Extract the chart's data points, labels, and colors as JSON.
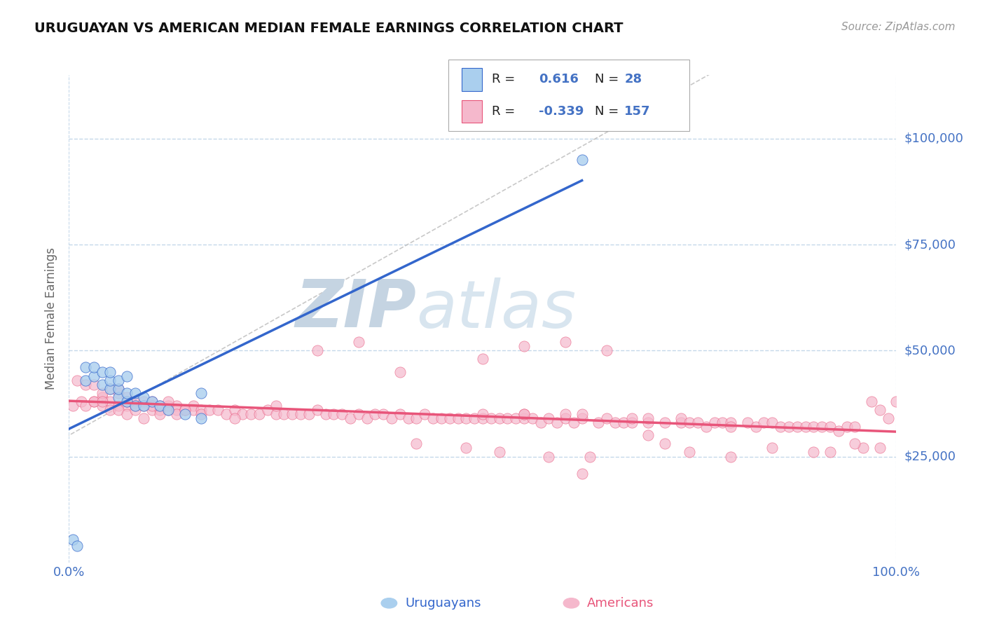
{
  "title": "URUGUAYAN VS AMERICAN MEDIAN FEMALE EARNINGS CORRELATION CHART",
  "source_text": "Source: ZipAtlas.com",
  "ylabel": "Median Female Earnings",
  "xmin": 0.0,
  "xmax": 1.0,
  "ymin": 0,
  "ymax": 115000,
  "yticks": [
    25000,
    50000,
    75000,
    100000
  ],
  "ytick_labels": [
    "$25,000",
    "$50,000",
    "$75,000",
    "$100,000"
  ],
  "xtick_labels": [
    "0.0%",
    "100.0%"
  ],
  "uruguayan_color": "#aacfee",
  "american_color": "#f5b8cc",
  "uruguayan_line_color": "#3366cc",
  "american_line_color": "#e8557a",
  "ref_line_color": "#bbbbbb",
  "title_color": "#111111",
  "axis_label_color": "#4472c4",
  "watermark_zip_color": "#c0cfe0",
  "watermark_atlas_color": "#d0d8e8",
  "background_color": "#ffffff",
  "grid_color": "#c5d8ea",
  "legend_box_color_1": "#aacfee",
  "legend_box_color_2": "#f5b8cc",
  "uruguayan_x": [
    0.005,
    0.01,
    0.02,
    0.02,
    0.03,
    0.03,
    0.04,
    0.04,
    0.05,
    0.05,
    0.05,
    0.06,
    0.06,
    0.06,
    0.07,
    0.07,
    0.07,
    0.08,
    0.08,
    0.09,
    0.09,
    0.1,
    0.11,
    0.12,
    0.14,
    0.16,
    0.16,
    0.62
  ],
  "uruguayan_y": [
    5500,
    4000,
    43000,
    46000,
    44000,
    46000,
    42000,
    45000,
    41000,
    43000,
    45000,
    39000,
    41000,
    43000,
    38000,
    40000,
    44000,
    37000,
    40000,
    37000,
    39000,
    38000,
    37000,
    36000,
    35000,
    34000,
    40000,
    95000
  ],
  "american_x": [
    0.005,
    0.01,
    0.015,
    0.02,
    0.02,
    0.03,
    0.03,
    0.04,
    0.04,
    0.05,
    0.05,
    0.06,
    0.06,
    0.07,
    0.07,
    0.08,
    0.08,
    0.09,
    0.09,
    0.1,
    0.1,
    0.11,
    0.11,
    0.12,
    0.12,
    0.13,
    0.13,
    0.14,
    0.14,
    0.15,
    0.15,
    0.16,
    0.16,
    0.17,
    0.18,
    0.19,
    0.2,
    0.21,
    0.22,
    0.23,
    0.24,
    0.25,
    0.26,
    0.27,
    0.28,
    0.29,
    0.3,
    0.31,
    0.32,
    0.33,
    0.34,
    0.35,
    0.36,
    0.37,
    0.38,
    0.39,
    0.4,
    0.41,
    0.42,
    0.43,
    0.44,
    0.45,
    0.46,
    0.47,
    0.48,
    0.49,
    0.5,
    0.5,
    0.51,
    0.52,
    0.53,
    0.54,
    0.55,
    0.55,
    0.56,
    0.57,
    0.58,
    0.59,
    0.6,
    0.6,
    0.61,
    0.62,
    0.62,
    0.64,
    0.65,
    0.66,
    0.67,
    0.68,
    0.68,
    0.7,
    0.7,
    0.72,
    0.74,
    0.74,
    0.75,
    0.76,
    0.77,
    0.78,
    0.79,
    0.8,
    0.8,
    0.82,
    0.83,
    0.84,
    0.85,
    0.86,
    0.87,
    0.88,
    0.89,
    0.9,
    0.91,
    0.92,
    0.93,
    0.94,
    0.95,
    0.96,
    0.97,
    0.98,
    0.99,
    1.0,
    0.03,
    0.04,
    0.04,
    0.05,
    0.06,
    0.06,
    0.07,
    0.07,
    0.08,
    0.09,
    0.1,
    0.11,
    0.12,
    0.13,
    0.14,
    0.2,
    0.25,
    0.3,
    0.35,
    0.4,
    0.5,
    0.55,
    0.6,
    0.65,
    0.42,
    0.48,
    0.52,
    0.58,
    0.63,
    0.72,
    0.75,
    0.8,
    0.85,
    0.9,
    0.92,
    0.95,
    0.98,
    0.62,
    0.7,
    0.55
  ],
  "american_y": [
    37000,
    43000,
    38000,
    42000,
    37000,
    42000,
    38000,
    39000,
    37000,
    41000,
    38000,
    40000,
    37000,
    39000,
    37000,
    38000,
    37000,
    38000,
    37000,
    38000,
    36000,
    37000,
    36000,
    37000,
    36000,
    37000,
    36000,
    36000,
    36000,
    37000,
    36000,
    36000,
    35000,
    36000,
    36000,
    35000,
    36000,
    35000,
    35000,
    35000,
    36000,
    35000,
    35000,
    35000,
    35000,
    35000,
    36000,
    35000,
    35000,
    35000,
    34000,
    35000,
    34000,
    35000,
    35000,
    34000,
    35000,
    34000,
    34000,
    35000,
    34000,
    34000,
    34000,
    34000,
    34000,
    34000,
    34000,
    35000,
    34000,
    34000,
    34000,
    34000,
    34000,
    35000,
    34000,
    33000,
    34000,
    33000,
    34000,
    35000,
    33000,
    34000,
    35000,
    33000,
    34000,
    33000,
    33000,
    33000,
    34000,
    33000,
    34000,
    33000,
    33000,
    34000,
    33000,
    33000,
    32000,
    33000,
    33000,
    33000,
    32000,
    33000,
    32000,
    33000,
    33000,
    32000,
    32000,
    32000,
    32000,
    32000,
    32000,
    32000,
    31000,
    32000,
    32000,
    27000,
    38000,
    36000,
    34000,
    38000,
    38000,
    40000,
    38000,
    36000,
    36000,
    41000,
    38000,
    35000,
    36000,
    34000,
    37000,
    35000,
    38000,
    35000,
    36000,
    34000,
    37000,
    50000,
    52000,
    45000,
    48000,
    51000,
    52000,
    50000,
    28000,
    27000,
    26000,
    25000,
    25000,
    28000,
    26000,
    25000,
    27000,
    26000,
    26000,
    28000,
    27000,
    21000,
    30000,
    35000
  ]
}
